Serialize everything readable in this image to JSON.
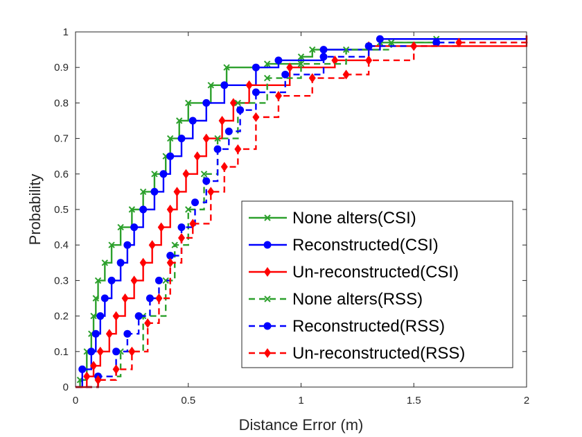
{
  "chart_data": {
    "type": "line",
    "title": "",
    "xlabel": "Distance Error (m)",
    "ylabel": "Probability",
    "xlim": [
      0,
      2
    ],
    "ylim": [
      0,
      1
    ],
    "xticks": [
      "0",
      "0.5",
      "1",
      "1.5",
      "2"
    ],
    "yticks": [
      "0",
      "0.1",
      "0.2",
      "0.3",
      "0.4",
      "0.5",
      "0.6",
      "0.7",
      "0.8",
      "0.9",
      "1"
    ],
    "grid": false,
    "legend_position": "bottom-right",
    "series": [
      {
        "name": "None alters(CSI)",
        "color": "#2ca02c",
        "dash": "solid",
        "marker": "x",
        "points": [
          [
            0,
            0
          ],
          [
            0.02,
            0.02
          ],
          [
            0.05,
            0.1
          ],
          [
            0.07,
            0.15
          ],
          [
            0.08,
            0.2
          ],
          [
            0.09,
            0.25
          ],
          [
            0.1,
            0.3
          ],
          [
            0.13,
            0.35
          ],
          [
            0.16,
            0.4
          ],
          [
            0.2,
            0.45
          ],
          [
            0.25,
            0.5
          ],
          [
            0.3,
            0.55
          ],
          [
            0.35,
            0.6
          ],
          [
            0.4,
            0.65
          ],
          [
            0.42,
            0.7
          ],
          [
            0.46,
            0.75
          ],
          [
            0.5,
            0.8
          ],
          [
            0.6,
            0.85
          ],
          [
            0.67,
            0.9
          ],
          [
            0.85,
            0.91
          ],
          [
            1.0,
            0.93
          ],
          [
            1.05,
            0.95
          ],
          [
            1.3,
            0.96
          ],
          [
            1.35,
            0.97
          ],
          [
            1.6,
            0.98
          ],
          [
            2.0,
            0.99
          ]
        ]
      },
      {
        "name": "Reconstructed(CSI)",
        "color": "#0000ff",
        "dash": "solid",
        "marker": "circle",
        "points": [
          [
            0,
            0
          ],
          [
            0.03,
            0.05
          ],
          [
            0.07,
            0.1
          ],
          [
            0.09,
            0.15
          ],
          [
            0.11,
            0.2
          ],
          [
            0.13,
            0.25
          ],
          [
            0.16,
            0.3
          ],
          [
            0.2,
            0.35
          ],
          [
            0.23,
            0.4
          ],
          [
            0.26,
            0.45
          ],
          [
            0.3,
            0.5
          ],
          [
            0.35,
            0.55
          ],
          [
            0.39,
            0.6
          ],
          [
            0.42,
            0.65
          ],
          [
            0.47,
            0.7
          ],
          [
            0.52,
            0.75
          ],
          [
            0.58,
            0.8
          ],
          [
            0.66,
            0.85
          ],
          [
            0.8,
            0.9
          ],
          [
            0.9,
            0.92
          ],
          [
            1.1,
            0.95
          ],
          [
            1.35,
            0.98
          ],
          [
            2.0,
            0.99
          ]
        ]
      },
      {
        "name": "Un-reconstructed(CSI)",
        "color": "#ff0000",
        "dash": "solid",
        "marker": "diamond",
        "points": [
          [
            0,
            0
          ],
          [
            0.05,
            0.03
          ],
          [
            0.08,
            0.06
          ],
          [
            0.11,
            0.1
          ],
          [
            0.15,
            0.15
          ],
          [
            0.18,
            0.2
          ],
          [
            0.22,
            0.25
          ],
          [
            0.26,
            0.3
          ],
          [
            0.3,
            0.35
          ],
          [
            0.34,
            0.4
          ],
          [
            0.38,
            0.45
          ],
          [
            0.42,
            0.5
          ],
          [
            0.45,
            0.55
          ],
          [
            0.49,
            0.6
          ],
          [
            0.54,
            0.65
          ],
          [
            0.58,
            0.7
          ],
          [
            0.65,
            0.75
          ],
          [
            0.7,
            0.8
          ],
          [
            0.77,
            0.85
          ],
          [
            0.95,
            0.9
          ],
          [
            1.15,
            0.92
          ],
          [
            1.3,
            0.96
          ],
          [
            2.0,
            0.99
          ]
        ]
      },
      {
        "name": "None alters(RSS)",
        "color": "#2ca02c",
        "dash": "dashed",
        "marker": "x",
        "points": [
          [
            0,
            0
          ],
          [
            0.1,
            0.03
          ],
          [
            0.2,
            0.1
          ],
          [
            0.3,
            0.2
          ],
          [
            0.4,
            0.3
          ],
          [
            0.44,
            0.4
          ],
          [
            0.5,
            0.5
          ],
          [
            0.57,
            0.6
          ],
          [
            0.63,
            0.7
          ],
          [
            0.72,
            0.8
          ],
          [
            0.85,
            0.87
          ],
          [
            1.0,
            0.91
          ],
          [
            1.2,
            0.95
          ],
          [
            1.4,
            0.97
          ],
          [
            2.0,
            0.98
          ]
        ]
      },
      {
        "name": "Reconstructed(RSS)",
        "color": "#0000ff",
        "dash": "dashed",
        "marker": "circle",
        "points": [
          [
            0,
            0
          ],
          [
            0.1,
            0.03
          ],
          [
            0.18,
            0.1
          ],
          [
            0.23,
            0.15
          ],
          [
            0.28,
            0.2
          ],
          [
            0.33,
            0.25
          ],
          [
            0.37,
            0.3
          ],
          [
            0.42,
            0.37
          ],
          [
            0.47,
            0.45
          ],
          [
            0.53,
            0.52
          ],
          [
            0.58,
            0.58
          ],
          [
            0.63,
            0.67
          ],
          [
            0.68,
            0.72
          ],
          [
            0.73,
            0.78
          ],
          [
            0.8,
            0.83
          ],
          [
            0.93,
            0.88
          ],
          [
            1.1,
            0.93
          ],
          [
            1.3,
            0.96
          ],
          [
            1.6,
            0.97
          ],
          [
            2.0,
            0.98
          ]
        ]
      },
      {
        "name": "Un-reconstructed(RSS)",
        "color": "#ff0000",
        "dash": "dashed",
        "marker": "diamond",
        "points": [
          [
            0,
            0
          ],
          [
            0.1,
            0.02
          ],
          [
            0.18,
            0.05
          ],
          [
            0.25,
            0.1
          ],
          [
            0.32,
            0.18
          ],
          [
            0.37,
            0.25
          ],
          [
            0.42,
            0.35
          ],
          [
            0.47,
            0.42
          ],
          [
            0.52,
            0.46
          ],
          [
            0.6,
            0.55
          ],
          [
            0.66,
            0.62
          ],
          [
            0.72,
            0.67
          ],
          [
            0.8,
            0.76
          ],
          [
            0.9,
            0.82
          ],
          [
            1.05,
            0.87
          ],
          [
            1.2,
            0.88
          ],
          [
            1.3,
            0.92
          ],
          [
            1.5,
            0.96
          ],
          [
            1.7,
            0.97
          ],
          [
            2.0,
            0.98
          ]
        ]
      }
    ]
  }
}
